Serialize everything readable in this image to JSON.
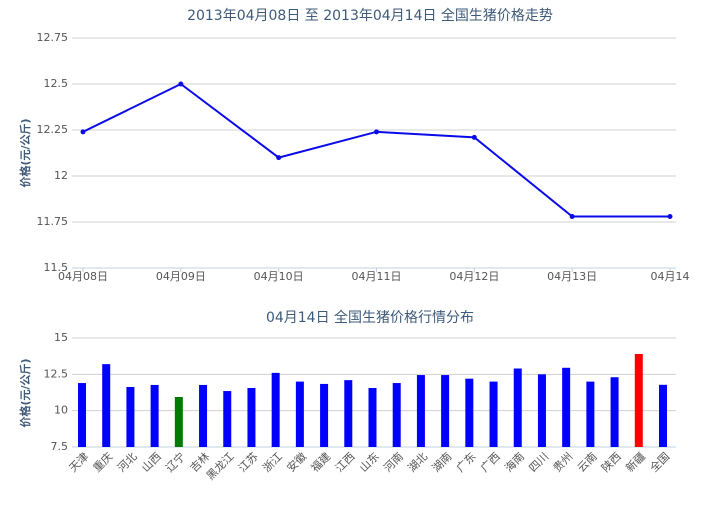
{
  "chart_data": [
    {
      "type": "line",
      "title": "2013年04月08日 至 2013年04月14日 全国生猪价格走势",
      "y_label": "价格(元/公斤)",
      "categories": [
        "04月08日",
        "04月09日",
        "04月10日",
        "04月11日",
        "04月12日",
        "04月13日",
        "04月14"
      ],
      "values": [
        12.24,
        12.5,
        12.1,
        12.24,
        12.21,
        11.78,
        11.78
      ],
      "color": "#0b0bea",
      "ylim": [
        11.5,
        12.75
      ],
      "yticks": [
        11.5,
        11.75,
        12,
        12.25,
        12.5,
        12.75
      ],
      "grid": true
    },
    {
      "type": "bar",
      "title": "04月14日 全国生猪价格行情分布",
      "y_label": "价格(元/公斤)",
      "categories": [
        "天津",
        "重庆",
        "河北",
        "山西",
        "辽宁",
        "吉林",
        "黑龙江",
        "江苏",
        "浙江",
        "安徽",
        "福建",
        "江西",
        "山东",
        "河南",
        "湖北",
        "湖南",
        "广东",
        "广西",
        "海南",
        "四川",
        "贵州",
        "云南",
        "陕西",
        "新疆",
        "全国"
      ],
      "values": [
        11.9,
        13.2,
        11.63,
        11.77,
        10.94,
        11.77,
        11.35,
        11.56,
        12.6,
        12.0,
        11.84,
        12.1,
        11.56,
        11.9,
        12.45,
        12.45,
        12.2,
        12.0,
        12.9,
        12.5,
        12.95,
        12.0,
        12.3,
        13.9,
        11.78
      ],
      "colors": [
        "#0000ff",
        "#0000ff",
        "#0000ff",
        "#0000ff",
        "#007a00",
        "#0000ff",
        "#0000ff",
        "#0000ff",
        "#0000ff",
        "#0000ff",
        "#0000ff",
        "#0000ff",
        "#0000ff",
        "#0000ff",
        "#0000ff",
        "#0000ff",
        "#0000ff",
        "#0000ff",
        "#0000ff",
        "#0000ff",
        "#0000ff",
        "#0000ff",
        "#0000ff",
        "#ff0000",
        "#0000ff"
      ],
      "ylim": [
        7.5,
        15
      ],
      "yticks": [
        7.5,
        10,
        12.5,
        15
      ],
      "grid": true
    }
  ]
}
